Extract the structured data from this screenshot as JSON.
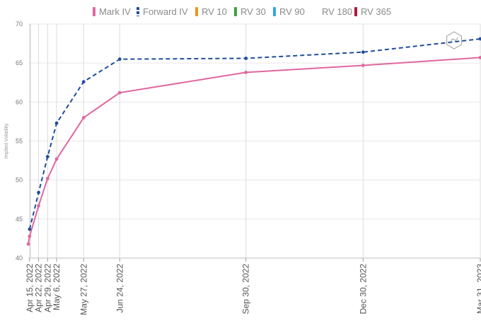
{
  "legend": {
    "items": [
      {
        "label": "Mark IV",
        "color": "#e0679f",
        "style": "solid"
      },
      {
        "label": "Forward IV",
        "color": "#1f4e9c",
        "style": "dashed"
      },
      {
        "label": "RV 10",
        "color": "#f0951c",
        "style": "solid"
      },
      {
        "label": "RV 30",
        "color": "#3aa33a",
        "style": "solid"
      },
      {
        "label": "RV 90",
        "color": "#2aaadf",
        "style": "solid"
      },
      {
        "label": "RV 180",
        "color": "#ffffff",
        "style": "none"
      },
      {
        "label": "RV 365",
        "color": "#b0173a",
        "style": "solid"
      }
    ]
  },
  "chart_data": {
    "type": "line",
    "ylabel": "Implied Volatility",
    "xlabel": "",
    "ylim": [
      40,
      70
    ],
    "yticks": [
      40,
      45,
      50,
      55,
      60,
      65,
      70
    ],
    "grid": true,
    "legend_position": "top",
    "x_axis_type": "date",
    "x_tick_labels": [
      "Apr 15, 2022",
      "Apr 22, 2022",
      "Apr 29, 2022",
      "May 6, 2022",
      "May 27, 2022",
      "Jun 24, 2022",
      "Sep 30, 2022",
      "Dec 30, 2022",
      "Mar 31, 2023"
    ],
    "x_tick_dates": [
      "2022-04-15",
      "2022-04-22",
      "2022-04-29",
      "2022-05-06",
      "2022-05-27",
      "2022-06-24",
      "2022-09-30",
      "2022-12-30",
      "2023-03-31"
    ],
    "series": [
      {
        "name": "Mark IV",
        "color": "#e0679f",
        "style": "solid",
        "points": [
          {
            "x": "2022-04-14",
            "y": 41.8
          },
          {
            "x": "2022-04-15",
            "y": 42.8
          },
          {
            "x": "2022-04-22",
            "y": 46.7
          },
          {
            "x": "2022-04-29",
            "y": 50.2
          },
          {
            "x": "2022-05-06",
            "y": 52.7
          },
          {
            "x": "2022-05-27",
            "y": 58.0
          },
          {
            "x": "2022-06-24",
            "y": 61.2
          },
          {
            "x": "2022-09-30",
            "y": 63.8
          },
          {
            "x": "2022-12-30",
            "y": 64.7
          },
          {
            "x": "2023-03-31",
            "y": 65.7
          }
        ]
      },
      {
        "name": "Forward IV",
        "color": "#1f4e9c",
        "style": "dashed",
        "points": [
          {
            "x": "2022-04-15",
            "y": 43.7
          },
          {
            "x": "2022-04-22",
            "y": 48.4
          },
          {
            "x": "2022-04-29",
            "y": 53.0
          },
          {
            "x": "2022-05-06",
            "y": 57.3
          },
          {
            "x": "2022-05-27",
            "y": 62.6
          },
          {
            "x": "2022-06-24",
            "y": 65.5
          },
          {
            "x": "2022-09-30",
            "y": 65.6
          },
          {
            "x": "2022-12-30",
            "y": 66.4
          },
          {
            "x": "2023-03-31",
            "y": 68.1
          }
        ]
      }
    ]
  }
}
